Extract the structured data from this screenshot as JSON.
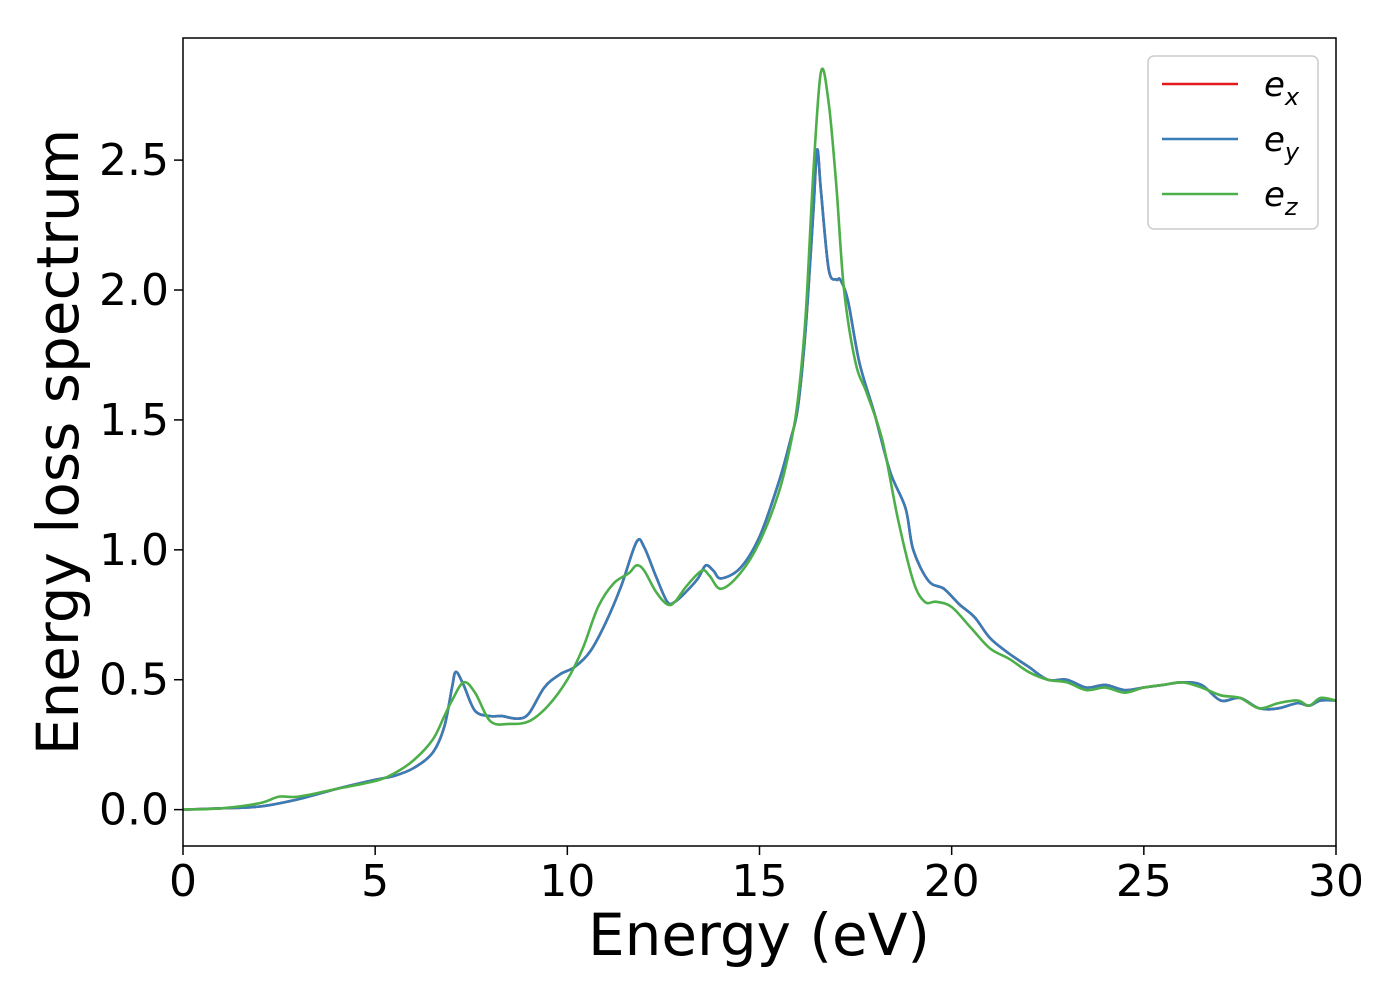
{
  "chart_data": {
    "type": "line",
    "title": "",
    "xlabel": "Energy (eV)",
    "ylabel": "Energy loss spectrum",
    "xlim": [
      0,
      30
    ],
    "ylim": [
      -0.14,
      2.97
    ],
    "xticks": [
      0,
      5,
      10,
      15,
      20,
      25,
      30
    ],
    "yticks": [
      0.0,
      0.5,
      1.0,
      1.5,
      2.0,
      2.5
    ],
    "x_tick_labels": [
      "0",
      "5",
      "10",
      "15",
      "20",
      "25",
      "30"
    ],
    "y_tick_labels": [
      "0.0",
      "0.5",
      "1.0",
      "1.5",
      "2.0",
      "2.5"
    ],
    "grid": false,
    "legend_position": "top-right",
    "series": [
      {
        "name": "e_x",
        "label_base": "e",
        "label_sub": "x",
        "color": "#e41a1c",
        "x": [
          0,
          1,
          2,
          3,
          4,
          5,
          5.5,
          6,
          6.5,
          6.8,
          7.0,
          7.1,
          7.3,
          7.6,
          8.0,
          8.3,
          8.7,
          9.0,
          9.4,
          9.8,
          10.2,
          10.6,
          11.0,
          11.4,
          11.8,
          12.0,
          12.3,
          12.6,
          12.8,
          13.1,
          13.4,
          13.6,
          13.8,
          14.0,
          14.5,
          15.0,
          15.5,
          15.8,
          16.0,
          16.2,
          16.4,
          16.5,
          16.6,
          16.8,
          17.0,
          17.1,
          17.3,
          17.6,
          18.0,
          18.4,
          18.8,
          19.0,
          19.4,
          19.8,
          20.2,
          20.6,
          21.0,
          21.5,
          22.0,
          22.5,
          23.0,
          23.5,
          24.0,
          24.5,
          25.0,
          25.5,
          26.0,
          26.5,
          27.0,
          27.5,
          28.0,
          28.5,
          29.0,
          29.3,
          29.6,
          30.0
        ],
        "y": [
          0,
          0.005,
          0.012,
          0.04,
          0.08,
          0.115,
          0.13,
          0.16,
          0.22,
          0.32,
          0.47,
          0.53,
          0.48,
          0.38,
          0.36,
          0.36,
          0.35,
          0.37,
          0.47,
          0.52,
          0.55,
          0.61,
          0.72,
          0.86,
          1.03,
          1.01,
          0.9,
          0.8,
          0.8,
          0.84,
          0.89,
          0.94,
          0.92,
          0.89,
          0.93,
          1.05,
          1.26,
          1.42,
          1.55,
          1.85,
          2.3,
          2.54,
          2.38,
          2.08,
          2.04,
          2.04,
          1.96,
          1.72,
          1.52,
          1.3,
          1.16,
          1.0,
          0.88,
          0.85,
          0.79,
          0.74,
          0.66,
          0.6,
          0.55,
          0.5,
          0.5,
          0.47,
          0.48,
          0.46,
          0.47,
          0.48,
          0.49,
          0.48,
          0.42,
          0.43,
          0.39,
          0.39,
          0.41,
          0.4,
          0.42,
          0.42
        ]
      },
      {
        "name": "e_y",
        "label_base": "e",
        "label_sub": "y",
        "color": "#377eb8",
        "x": [
          0,
          1,
          2,
          3,
          4,
          5,
          5.5,
          6,
          6.5,
          6.8,
          7.0,
          7.1,
          7.3,
          7.6,
          8.0,
          8.3,
          8.7,
          9.0,
          9.4,
          9.8,
          10.2,
          10.6,
          11.0,
          11.4,
          11.8,
          12.0,
          12.3,
          12.6,
          12.8,
          13.1,
          13.4,
          13.6,
          13.8,
          14.0,
          14.5,
          15.0,
          15.5,
          15.8,
          16.0,
          16.2,
          16.4,
          16.5,
          16.6,
          16.8,
          17.0,
          17.1,
          17.3,
          17.6,
          18.0,
          18.4,
          18.8,
          19.0,
          19.4,
          19.8,
          20.2,
          20.6,
          21.0,
          21.5,
          22.0,
          22.5,
          23.0,
          23.5,
          24.0,
          24.5,
          25.0,
          25.5,
          26.0,
          26.5,
          27.0,
          27.5,
          28.0,
          28.5,
          29.0,
          29.3,
          29.6,
          30.0
        ],
        "y": [
          0,
          0.005,
          0.012,
          0.04,
          0.08,
          0.115,
          0.13,
          0.16,
          0.22,
          0.32,
          0.47,
          0.53,
          0.48,
          0.38,
          0.36,
          0.36,
          0.35,
          0.37,
          0.47,
          0.52,
          0.55,
          0.61,
          0.72,
          0.86,
          1.03,
          1.01,
          0.9,
          0.8,
          0.8,
          0.84,
          0.89,
          0.94,
          0.92,
          0.89,
          0.93,
          1.05,
          1.26,
          1.42,
          1.55,
          1.85,
          2.3,
          2.54,
          2.38,
          2.08,
          2.04,
          2.04,
          1.96,
          1.72,
          1.52,
          1.3,
          1.16,
          1.0,
          0.88,
          0.85,
          0.79,
          0.74,
          0.66,
          0.6,
          0.55,
          0.5,
          0.5,
          0.47,
          0.48,
          0.46,
          0.47,
          0.48,
          0.49,
          0.48,
          0.42,
          0.43,
          0.39,
          0.39,
          0.41,
          0.4,
          0.42,
          0.42
        ]
      },
      {
        "name": "e_z",
        "label_base": "e",
        "label_sub": "z",
        "color": "#4daf4a",
        "x": [
          0,
          1,
          2,
          2.5,
          3,
          4,
          5,
          5.5,
          6,
          6.5,
          6.8,
          7.0,
          7.3,
          7.6,
          8.0,
          8.5,
          9.0,
          9.5,
          10.0,
          10.4,
          10.8,
          11.2,
          11.6,
          11.8,
          12.0,
          12.3,
          12.6,
          12.8,
          13.1,
          13.5,
          13.7,
          14.0,
          14.5,
          15.0,
          15.5,
          15.8,
          16.0,
          16.2,
          16.4,
          16.6,
          16.8,
          17.0,
          17.2,
          17.5,
          17.8,
          18.2,
          18.6,
          19.0,
          19.3,
          19.6,
          20.0,
          20.5,
          21.0,
          21.5,
          22.0,
          22.5,
          23.0,
          23.5,
          24.0,
          24.5,
          25.0,
          25.5,
          26.0,
          26.5,
          27.0,
          27.5,
          28.0,
          28.5,
          29.0,
          29.3,
          29.6,
          30.0
        ],
        "y": [
          0,
          0.005,
          0.025,
          0.05,
          0.05,
          0.08,
          0.11,
          0.14,
          0.19,
          0.27,
          0.36,
          0.42,
          0.49,
          0.45,
          0.34,
          0.33,
          0.34,
          0.4,
          0.5,
          0.62,
          0.78,
          0.87,
          0.91,
          0.94,
          0.92,
          0.84,
          0.79,
          0.8,
          0.86,
          0.92,
          0.9,
          0.85,
          0.91,
          1.03,
          1.22,
          1.4,
          1.58,
          1.9,
          2.45,
          2.84,
          2.72,
          2.4,
          2.0,
          1.72,
          1.6,
          1.42,
          1.12,
          0.88,
          0.8,
          0.8,
          0.78,
          0.7,
          0.62,
          0.58,
          0.53,
          0.5,
          0.49,
          0.46,
          0.47,
          0.45,
          0.47,
          0.48,
          0.49,
          0.47,
          0.44,
          0.43,
          0.39,
          0.41,
          0.42,
          0.4,
          0.43,
          0.42
        ]
      }
    ]
  }
}
